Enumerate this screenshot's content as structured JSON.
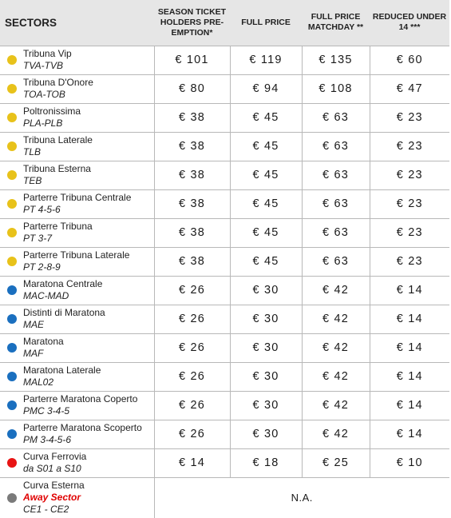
{
  "header": {
    "sectors": "SECTORS",
    "season": "SEASON TICKET HOLDERS PRE-EMPTION*",
    "full": "FULL PRICE",
    "matchday": "FULL PRICE MATCHDAY **",
    "reduced": "REDUCED UNDER 14 ***"
  },
  "colors": {
    "yellow": "#e8c21a",
    "blue": "#1a6fbf",
    "red": "#e81414",
    "gray": "#7a7a7a"
  },
  "rows": [
    {
      "color": "yellow",
      "name": "Tribuna Vip",
      "code": "TVA-TVB",
      "p": [
        "€ 101",
        "€ 119",
        "€ 135",
        "€ 60"
      ]
    },
    {
      "color": "yellow",
      "name": "Tribuna D'Onore",
      "code": "TOA-TOB",
      "p": [
        "€ 80",
        "€ 94",
        "€ 108",
        "€ 47"
      ]
    },
    {
      "color": "yellow",
      "name": "Poltronissima",
      "code": "PLA-PLB",
      "p": [
        "€ 38",
        "€ 45",
        "€ 63",
        "€ 23"
      ]
    },
    {
      "color": "yellow",
      "name": "Tribuna Laterale",
      "code": "TLB",
      "p": [
        "€ 38",
        "€ 45",
        "€ 63",
        "€ 23"
      ]
    },
    {
      "color": "yellow",
      "name": "Tribuna Esterna",
      "code": "TEB",
      "p": [
        "€ 38",
        "€ 45",
        "€ 63",
        "€ 23"
      ]
    },
    {
      "color": "yellow",
      "name": "Parterre Tribuna Centrale",
      "code": "PT 4-5-6",
      "p": [
        "€ 38",
        "€ 45",
        "€ 63",
        "€ 23"
      ]
    },
    {
      "color": "yellow",
      "name": "Parterre Tribuna",
      "code": "PT 3-7",
      "p": [
        "€ 38",
        "€ 45",
        "€ 63",
        "€ 23"
      ]
    },
    {
      "color": "yellow",
      "name": "Parterre Tribuna Laterale",
      "code": "PT 2-8-9",
      "p": [
        "€ 38",
        "€ 45",
        "€ 63",
        "€ 23"
      ]
    },
    {
      "color": "blue",
      "name": "Maratona Centrale",
      "code": "MAC-MAD",
      "p": [
        "€ 26",
        "€ 30",
        "€ 42",
        "€ 14"
      ]
    },
    {
      "color": "blue",
      "name": "Distinti di Maratona",
      "code": "MAE",
      "p": [
        "€ 26",
        "€ 30",
        "€ 42",
        "€ 14"
      ]
    },
    {
      "color": "blue",
      "name": "Maratona",
      "code": "MAF",
      "p": [
        "€ 26",
        "€ 30",
        "€ 42",
        "€ 14"
      ]
    },
    {
      "color": "blue",
      "name": "Maratona Laterale",
      "code": "MAL02",
      "p": [
        "€ 26",
        "€ 30",
        "€ 42",
        "€ 14"
      ]
    },
    {
      "color": "blue",
      "name": "Parterre Maratona Coperto",
      "code": "PMC 3-4-5",
      "p": [
        "€ 26",
        "€ 30",
        "€ 42",
        "€ 14"
      ]
    },
    {
      "color": "blue",
      "name": "Parterre Maratona Scoperto",
      "code": "PM 3-4-5-6",
      "p": [
        "€ 26",
        "€ 30",
        "€ 42",
        "€ 14"
      ]
    },
    {
      "color": "red",
      "name": "Curva Ferrovia",
      "code": "da S01 a S10",
      "p": [
        "€ 14",
        "€ 18",
        "€ 25",
        "€ 10"
      ]
    }
  ],
  "away_row": {
    "color": "gray",
    "name": "Curva Esterna",
    "away": "Away Sector",
    "code": "CE1 - CE2",
    "na": "N.A."
  }
}
